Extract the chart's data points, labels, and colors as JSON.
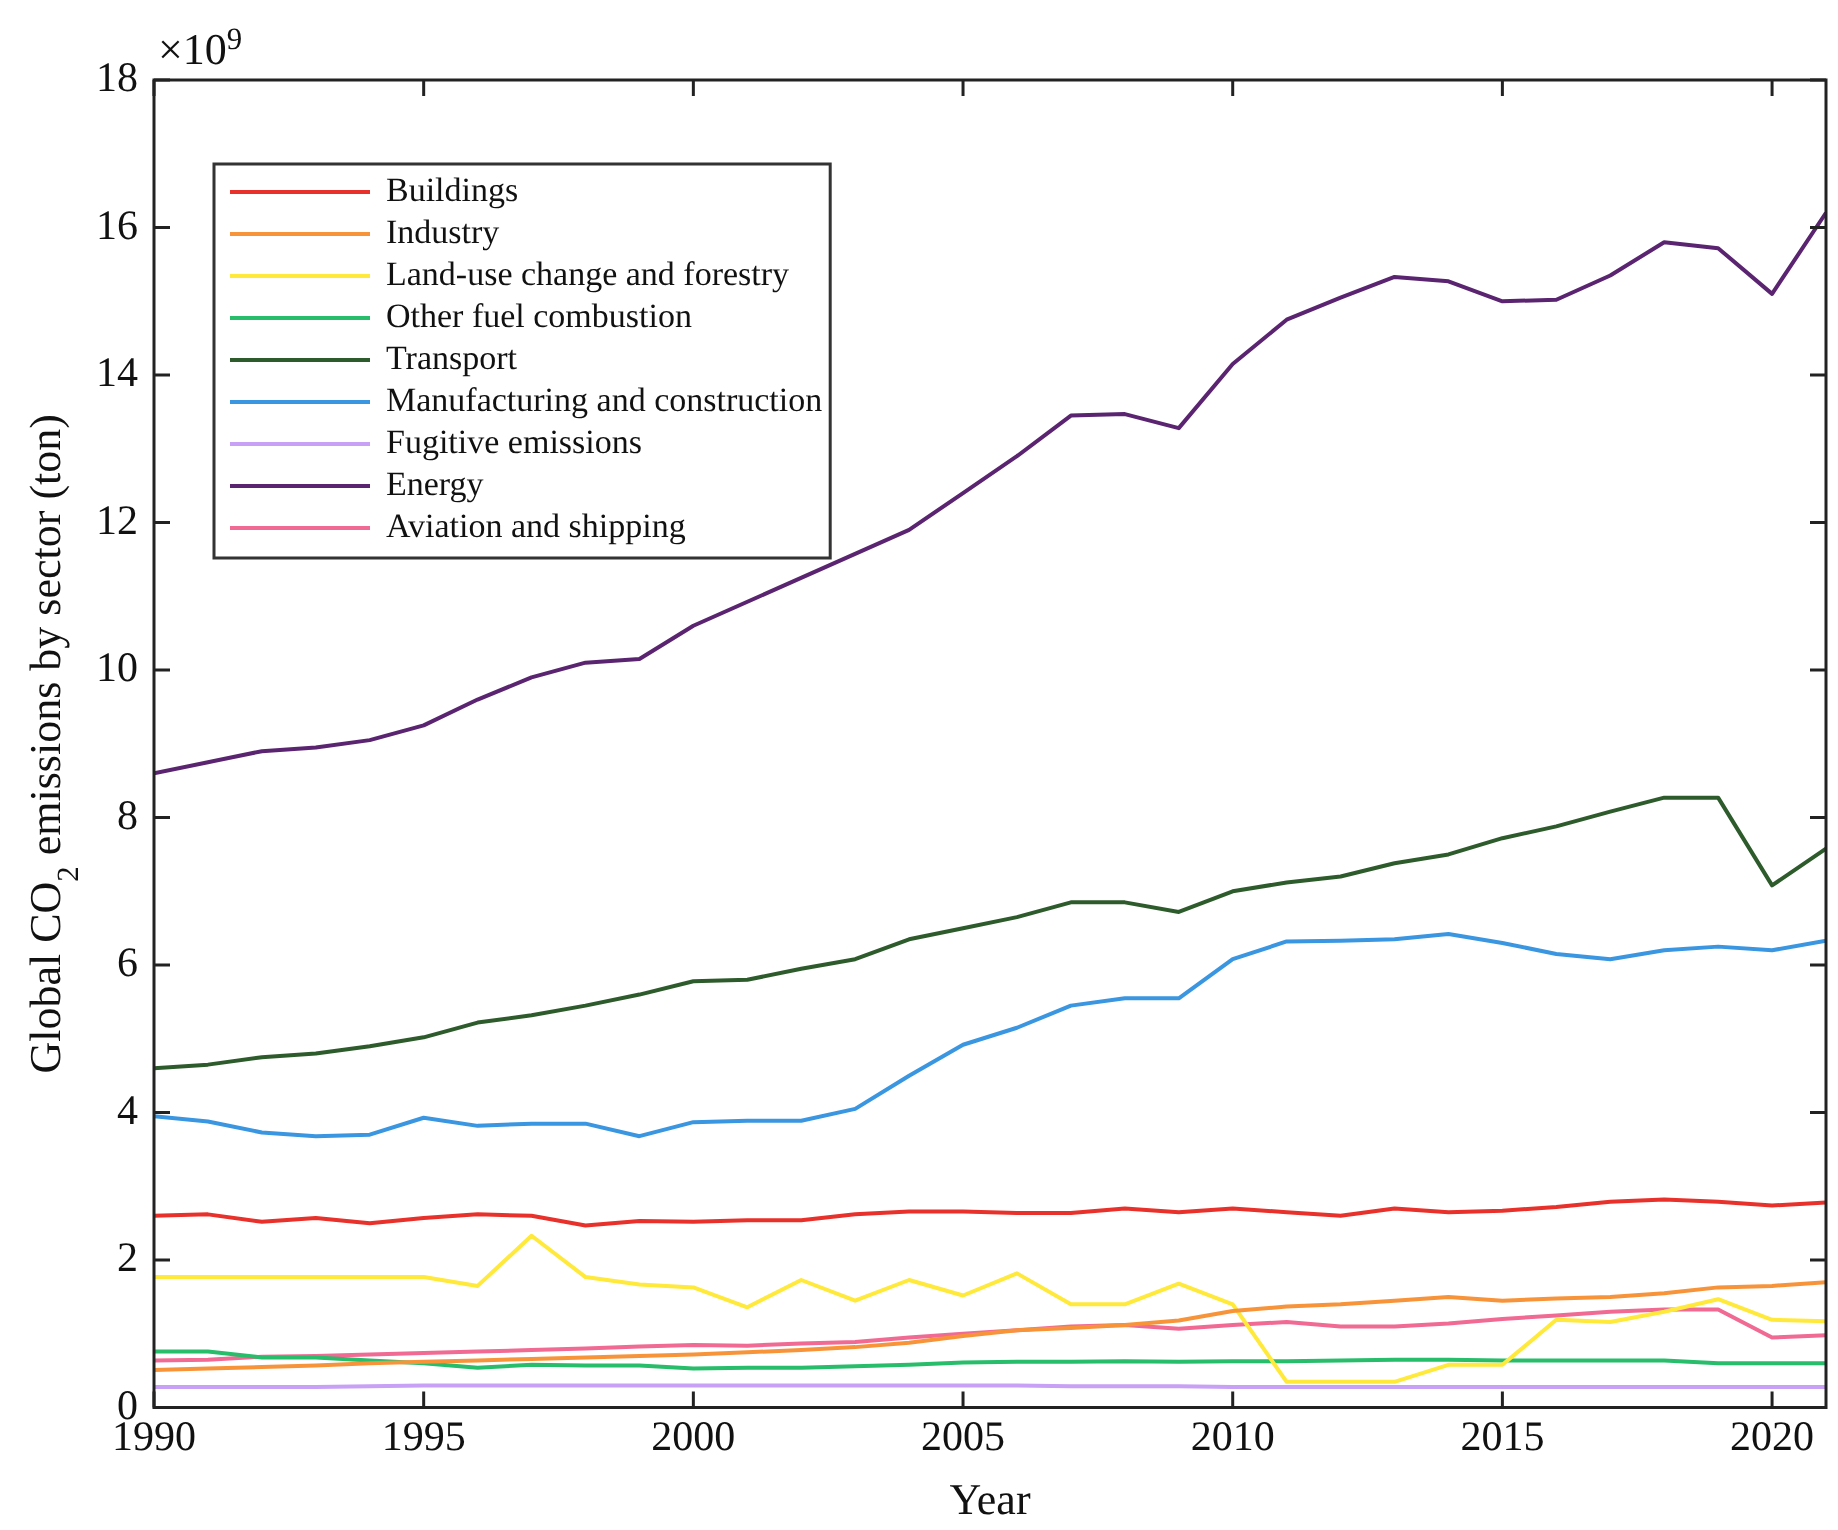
{
  "chart_data": {
    "type": "line",
    "xlabel": "Year",
    "ylabel": "Global CO$_{2}$ emissions by sector (ton)",
    "annotations": [
      "×10$^{9}$"
    ],
    "x": [
      1990,
      1991,
      1992,
      1993,
      1994,
      1995,
      1996,
      1997,
      1998,
      1999,
      2000,
      2001,
      2002,
      2003,
      2004,
      2005,
      2006,
      2007,
      2008,
      2009,
      2010,
      2011,
      2012,
      2013,
      2014,
      2015,
      2016,
      2017,
      2018,
      2019,
      2020,
      2021
    ],
    "xlim": [
      1990,
      2021
    ],
    "xticks": [
      1990,
      1995,
      2000,
      2005,
      2010,
      2015,
      2020
    ],
    "ylim": [
      0,
      18
    ],
    "yticks": [
      0,
      2,
      4,
      6,
      8,
      10,
      12,
      14,
      16,
      18
    ],
    "grid": false,
    "legend": "top left",
    "marker": "none",
    "line_style": "solid",
    "series": [
      {
        "name": "Buildings",
        "color": "#e8312a",
        "values": [
          2.6,
          2.62,
          2.52,
          2.57,
          2.5,
          2.57,
          2.62,
          2.6,
          2.47,
          2.53,
          2.52,
          2.54,
          2.54,
          2.62,
          2.66,
          2.66,
          2.64,
          2.64,
          2.7,
          2.65,
          2.7,
          2.65,
          2.6,
          2.7,
          2.65,
          2.67,
          2.72,
          2.79,
          2.82,
          2.79,
          2.74,
          2.78
        ]
      },
      {
        "name": "Industry",
        "color": "#f7943a",
        "values": [
          0.51,
          0.53,
          0.55,
          0.57,
          0.6,
          0.62,
          0.64,
          0.66,
          0.68,
          0.7,
          0.72,
          0.75,
          0.78,
          0.82,
          0.88,
          0.97,
          1.05,
          1.08,
          1.12,
          1.18,
          1.31,
          1.37,
          1.4,
          1.45,
          1.5,
          1.45,
          1.48,
          1.5,
          1.55,
          1.63,
          1.65,
          1.7
        ]
      },
      {
        "name": "Land-use change and forestry",
        "color": "#ffe93a",
        "values": [
          1.77,
          1.77,
          1.77,
          1.77,
          1.77,
          1.77,
          1.65,
          2.33,
          1.77,
          1.67,
          1.63,
          1.36,
          1.73,
          1.45,
          1.73,
          1.52,
          1.82,
          1.4,
          1.4,
          1.68,
          1.4,
          0.35,
          0.35,
          0.35,
          0.58,
          0.58,
          1.19,
          1.16,
          1.3,
          1.47,
          1.19,
          1.17
        ]
      },
      {
        "name": "Other fuel combustion",
        "color": "#27bd6a",
        "values": [
          0.76,
          0.76,
          0.68,
          0.68,
          0.64,
          0.6,
          0.54,
          0.58,
          0.57,
          0.57,
          0.53,
          0.54,
          0.54,
          0.56,
          0.58,
          0.61,
          0.62,
          0.62,
          0.63,
          0.62,
          0.63,
          0.63,
          0.64,
          0.65,
          0.65,
          0.64,
          0.64,
          0.64,
          0.64,
          0.6,
          0.6,
          0.6
        ]
      },
      {
        "name": "Transport",
        "color": "#2e5b2b",
        "values": [
          4.6,
          4.65,
          4.75,
          4.8,
          4.9,
          5.02,
          5.22,
          5.32,
          5.45,
          5.6,
          5.78,
          5.8,
          5.95,
          6.08,
          6.35,
          6.5,
          6.65,
          6.85,
          6.85,
          6.72,
          7.0,
          7.12,
          7.2,
          7.38,
          7.5,
          7.72,
          7.88,
          8.08,
          8.27,
          8.27,
          7.08,
          7.58
        ]
      },
      {
        "name": "Manufacturing and construction",
        "color": "#3a96e0",
        "values": [
          3.95,
          3.88,
          3.73,
          3.68,
          3.7,
          3.93,
          3.82,
          3.85,
          3.85,
          3.68,
          3.87,
          3.89,
          3.89,
          4.05,
          4.5,
          4.92,
          5.15,
          5.45,
          5.55,
          5.55,
          6.08,
          6.32,
          6.33,
          6.35,
          6.42,
          6.3,
          6.15,
          6.08,
          6.2,
          6.25,
          6.2,
          6.33
        ]
      },
      {
        "name": "Fugitive emissions",
        "color": "#c8a0f5",
        "values": [
          0.28,
          0.28,
          0.28,
          0.28,
          0.29,
          0.3,
          0.3,
          0.3,
          0.3,
          0.3,
          0.3,
          0.3,
          0.3,
          0.3,
          0.3,
          0.3,
          0.3,
          0.29,
          0.29,
          0.29,
          0.28,
          0.28,
          0.28,
          0.28,
          0.28,
          0.28,
          0.28,
          0.28,
          0.28,
          0.28,
          0.28,
          0.28
        ]
      },
      {
        "name": "Energy",
        "color": "#5a2470",
        "values": [
          8.6,
          8.75,
          8.9,
          8.95,
          9.05,
          9.25,
          9.6,
          9.9,
          10.1,
          10.15,
          10.6,
          null,
          null,
          null,
          11.9,
          12.4,
          12.9,
          13.45,
          13.47,
          13.28,
          14.15,
          14.75,
          15.05,
          15.33,
          15.27,
          15.0,
          15.02,
          15.35,
          15.8,
          15.72,
          15.1,
          16.2
        ]
      },
      {
        "name": "Aviation and shipping",
        "color": "#f06a94",
        "values": [
          0.64,
          0.65,
          0.69,
          0.7,
          0.72,
          0.74,
          0.76,
          0.78,
          0.8,
          0.83,
          0.85,
          0.84,
          0.87,
          0.89,
          0.95,
          1.0,
          1.05,
          1.1,
          1.12,
          1.07,
          1.12,
          1.16,
          1.1,
          1.1,
          1.14,
          1.2,
          1.25,
          1.3,
          1.33,
          1.33,
          0.95,
          0.98
        ]
      }
    ]
  }
}
